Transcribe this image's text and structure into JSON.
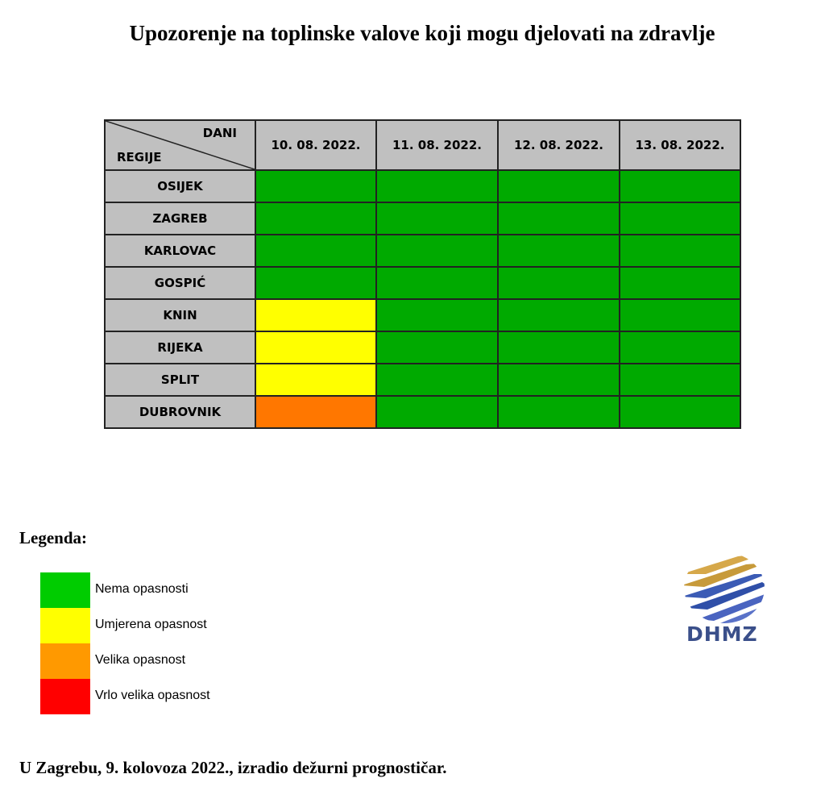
{
  "title": "Upozorenje na toplinske valove koji mogu djelovati na zdravlje",
  "table": {
    "corner_top": "DANI",
    "corner_bottom": "REGIJE",
    "dates": [
      "10. 08. 2022.",
      "11. 08. 2022.",
      "12. 08. 2022.",
      "13. 08. 2022."
    ],
    "rows": [
      {
        "region": "OSIJEK",
        "levels": [
          "none",
          "none",
          "none",
          "none"
        ]
      },
      {
        "region": "ZAGREB",
        "levels": [
          "none",
          "none",
          "none",
          "none"
        ]
      },
      {
        "region": "KARLOVAC",
        "levels": [
          "none",
          "none",
          "none",
          "none"
        ]
      },
      {
        "region": "GOSPIĆ",
        "levels": [
          "none",
          "none",
          "none",
          "none"
        ]
      },
      {
        "region": "KNIN",
        "levels": [
          "moderate",
          "none",
          "none",
          "none"
        ]
      },
      {
        "region": "RIJEKA",
        "levels": [
          "moderate",
          "none",
          "none",
          "none"
        ]
      },
      {
        "region": "SPLIT",
        "levels": [
          "moderate",
          "none",
          "none",
          "none"
        ]
      },
      {
        "region": "DUBROVNIK",
        "levels": [
          "high",
          "none",
          "none",
          "none"
        ]
      }
    ]
  },
  "level_colors": {
    "none": "#00aa00",
    "moderate": "#ffff00",
    "high": "#ff7700",
    "very_high": "#ff0000"
  },
  "legend": {
    "title": "Legenda:",
    "items": [
      {
        "label": "Nema opasnosti",
        "color": "#00cc00"
      },
      {
        "label": "Umjerena opasnost",
        "color": "#ffff00"
      },
      {
        "label": "Velika opasnost",
        "color": "#ff9900"
      },
      {
        "label": "Vrlo velika opasnost",
        "color": "#ff0000"
      }
    ]
  },
  "logo": {
    "text": "DHMZ",
    "icon": "dhmz-logo-icon",
    "text_color": "#3a4f8a"
  },
  "footer": "U Zagrebu, 9. kolovoza 2022., izradio dežurni prognostičar."
}
